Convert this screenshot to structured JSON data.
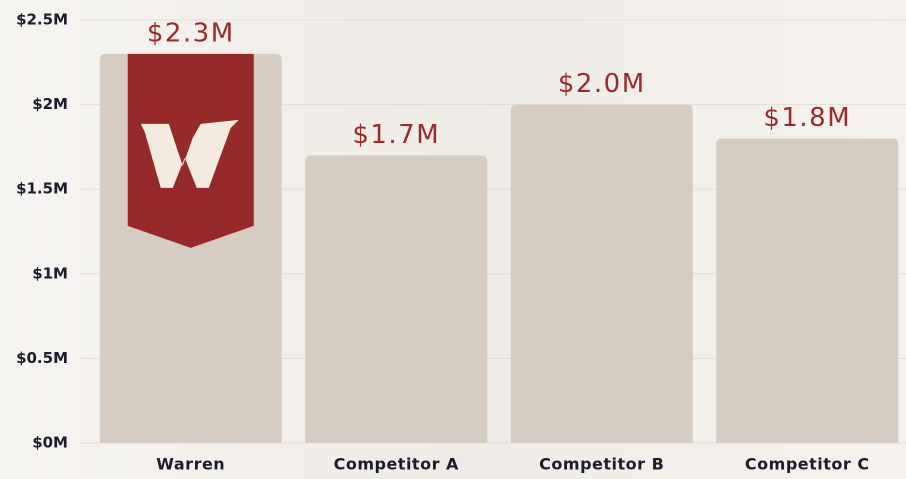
{
  "chart_data": {
    "type": "bar",
    "categories": [
      "Warren",
      "Competitor A",
      "Competitor B",
      "Competitor C"
    ],
    "values": [
      2.3,
      1.7,
      2.0,
      1.8
    ],
    "value_labels": [
      "$2.3M",
      "$1.7M",
      "$2.0M",
      "$1.8M"
    ],
    "color": "#d6ccc1",
    "ylim": [
      0,
      2.5
    ],
    "yticks": [
      {
        "value": 0,
        "label": "$0M"
      },
      {
        "value": 0.5,
        "label": "$0.5M"
      },
      {
        "value": 1,
        "label": "$1M"
      },
      {
        "value": 1.5,
        "label": "$1.5M"
      },
      {
        "value": 2,
        "label": "$2M"
      },
      {
        "value": 2.5,
        "label": "$2.5M"
      }
    ],
    "grid": true
  }
}
